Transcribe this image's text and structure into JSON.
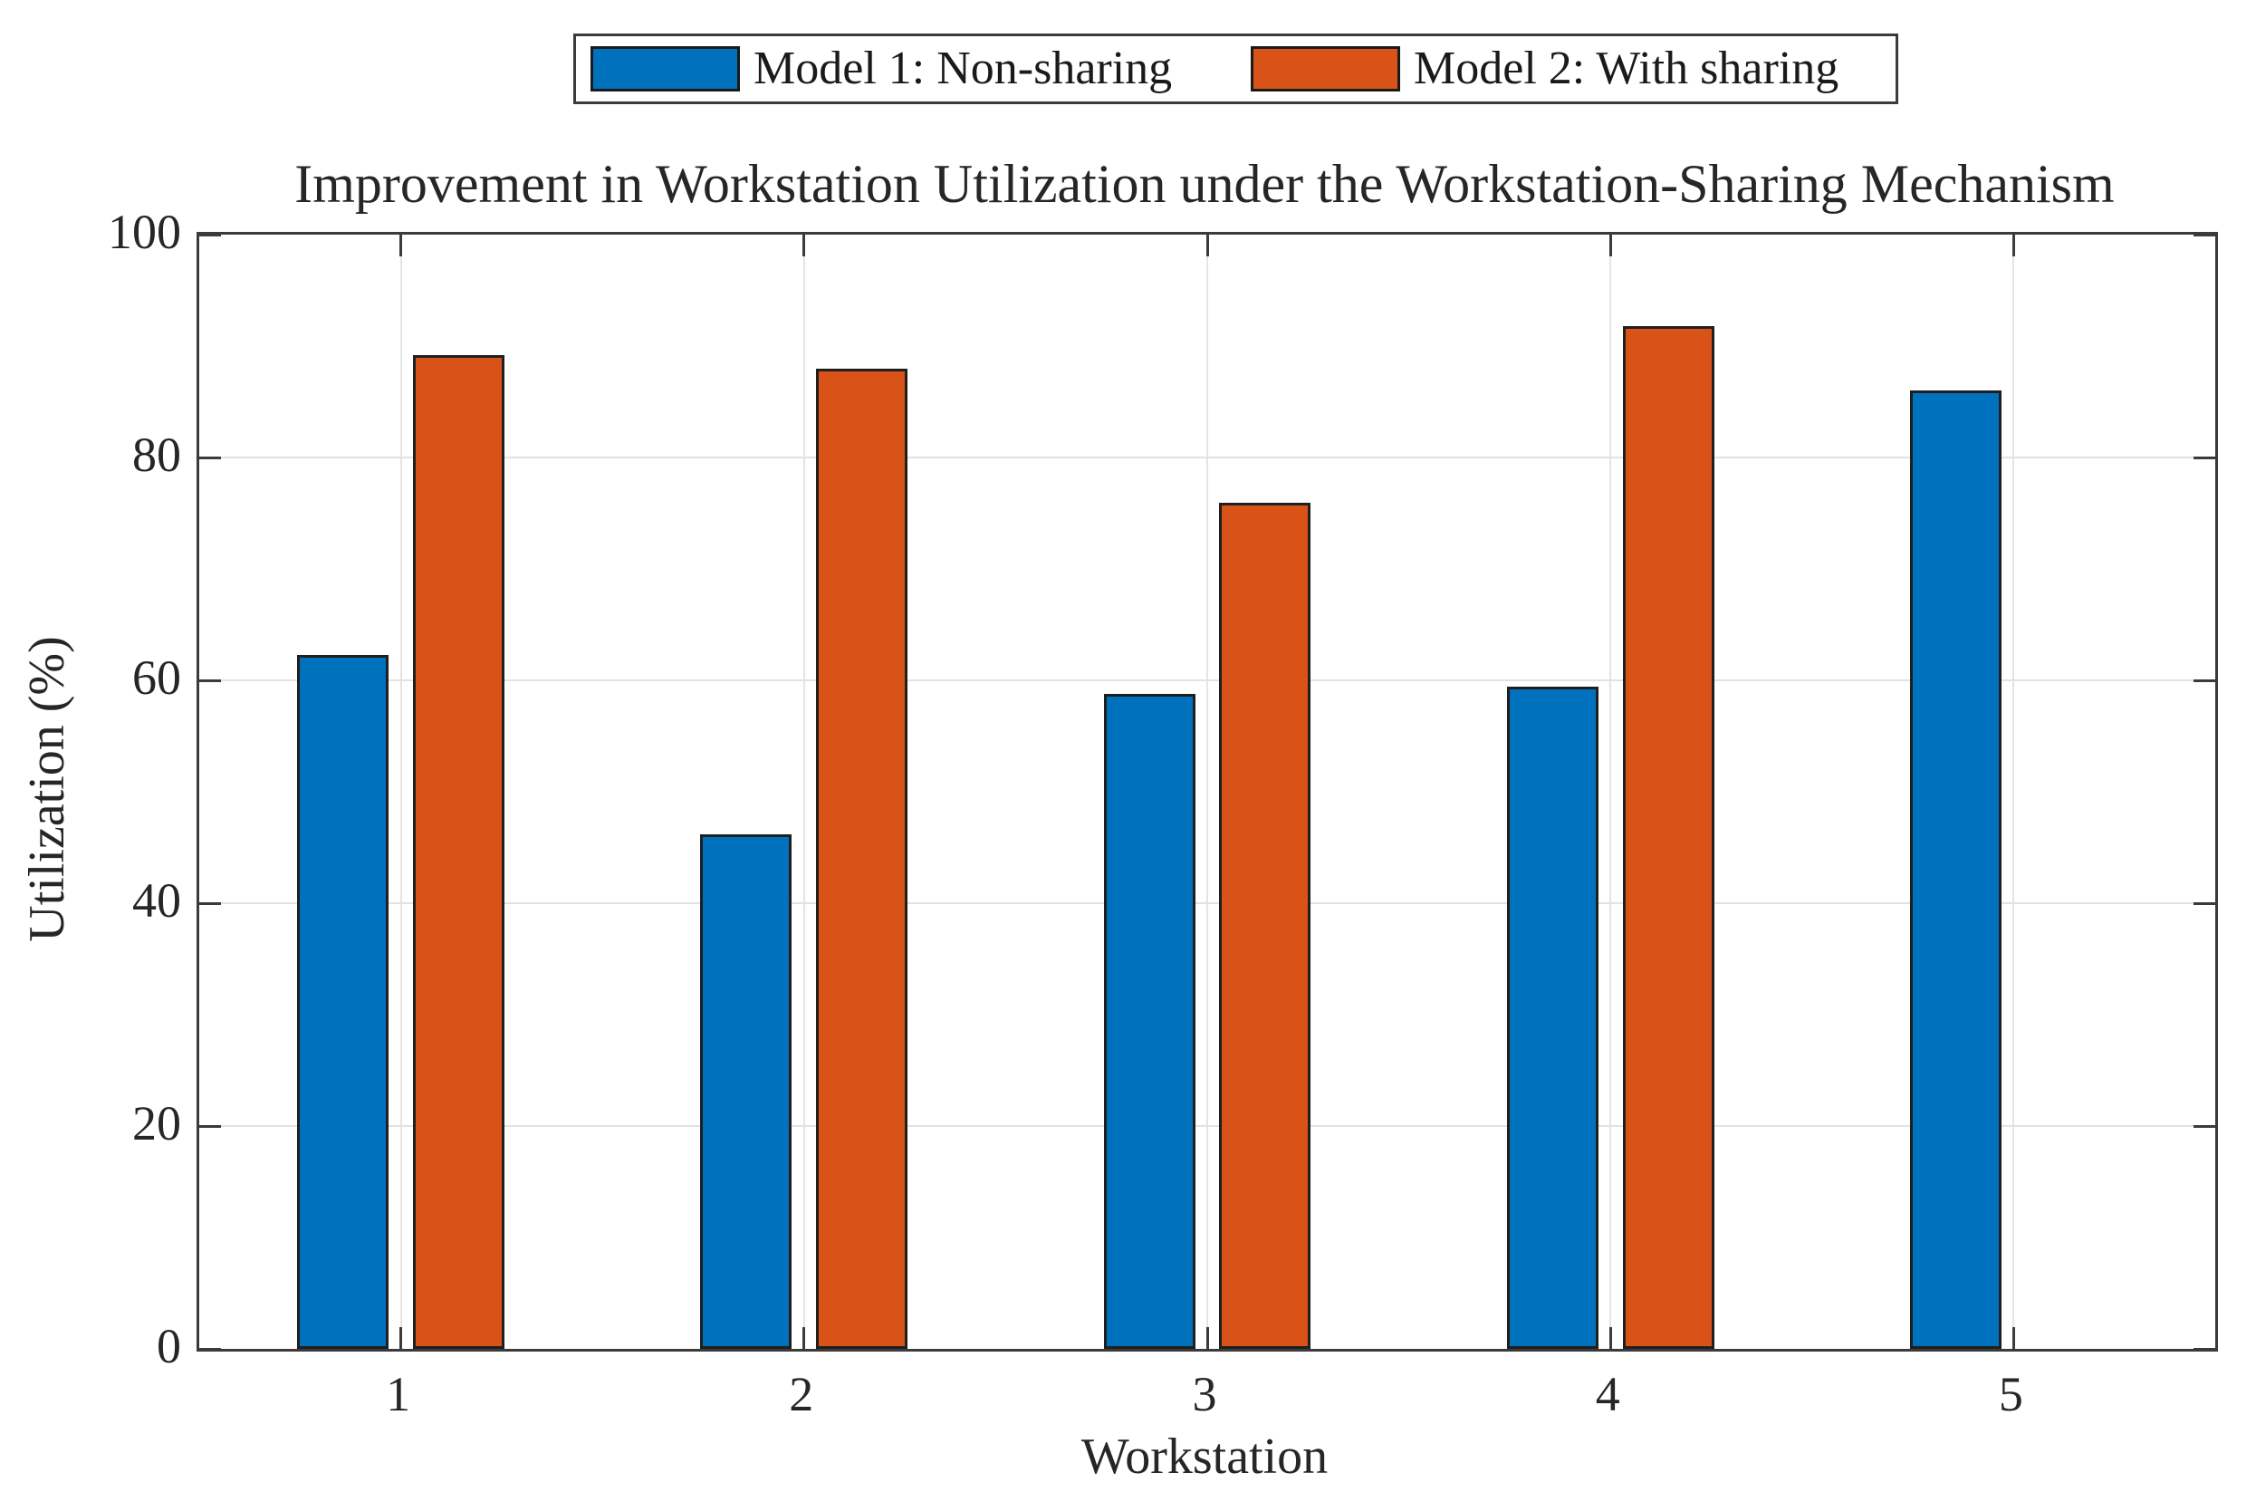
{
  "chart_data": {
    "type": "bar",
    "title": "Improvement in Workstation Utilization under the Workstation-Sharing Mechanism",
    "xlabel": "Workstation",
    "ylabel": "Utilization (%)",
    "categories": [
      "1",
      "2",
      "3",
      "4",
      "5"
    ],
    "series": [
      {
        "name": "Model 1: Non-sharing",
        "color": "#0072BD",
        "values": [
          62.3,
          46.2,
          58.8,
          59.4,
          86.0
        ]
      },
      {
        "name": "Model 2: With sharing",
        "color": "#D95319",
        "values": [
          89.2,
          88.0,
          75.9,
          91.8,
          null
        ]
      }
    ],
    "ylim": [
      0,
      100
    ],
    "yticks": [
      0,
      20,
      40,
      60,
      80,
      100
    ],
    "grid": true,
    "legend_position": "top-center-outside-box"
  },
  "colors": {
    "axis": "#3b3b3b",
    "grid": "#e2e2e2",
    "bar_edge": "#1f1f1f",
    "background": "#ffffff",
    "text": "#262626"
  }
}
